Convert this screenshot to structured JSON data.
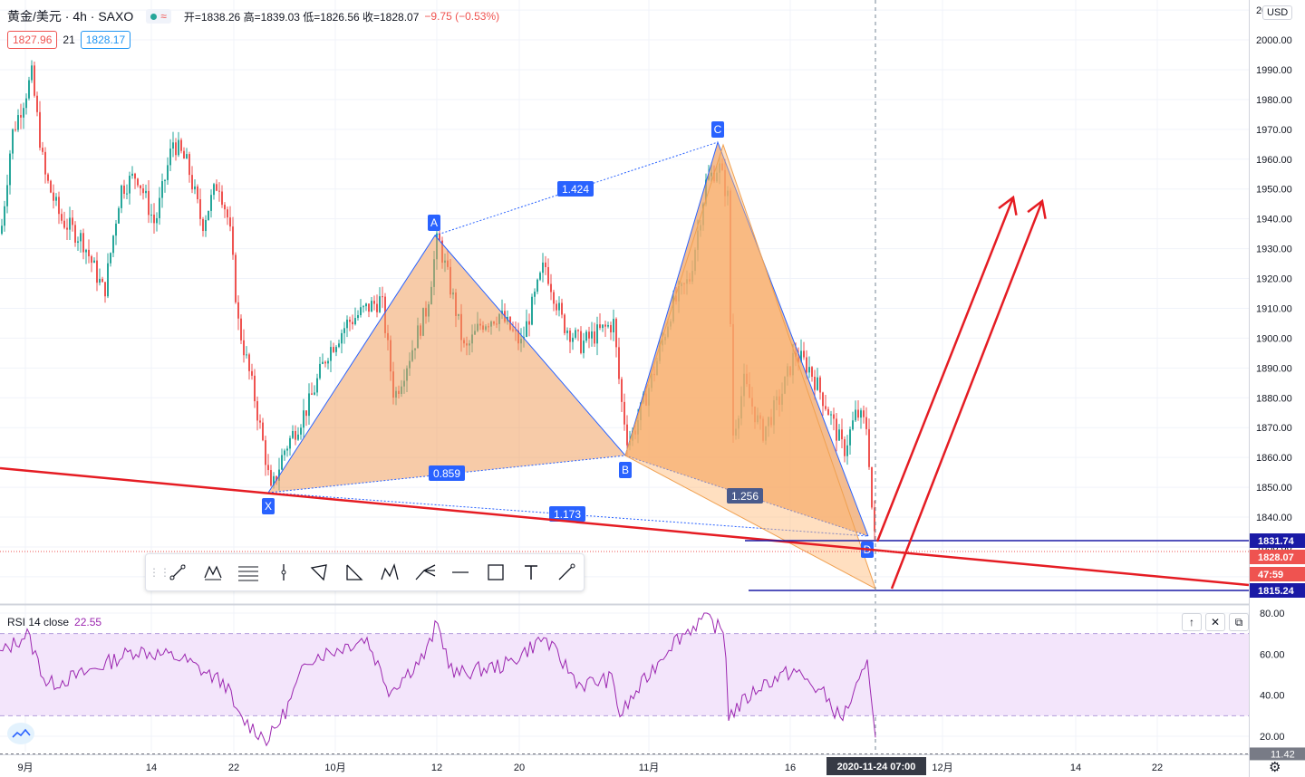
{
  "header": {
    "symbol": "黄金/美元 · 4h · SAXO",
    "ohlc": "开=1838.26  高=1839.03  低=1826.56  收=1828.07",
    "change": "−9.75 (−0.53%)",
    "bid": "1827.96",
    "spread": "21",
    "ask": "1828.17"
  },
  "currency_button": "USD",
  "price_axis": {
    "ticks": [
      "2010.00",
      "2000.00",
      "1990.00",
      "1980.00",
      "1970.00",
      "1960.00",
      "1950.00",
      "1940.00",
      "1930.00",
      "1920.00",
      "1910.00",
      "1900.00",
      "1890.00",
      "1880.00",
      "1870.00",
      "1860.00",
      "1850.00",
      "1840.00",
      "1830.00",
      "1820.00"
    ],
    "labels": {
      "upper_line": "1831.74",
      "last_price": "1828.07",
      "countdown": "47:59",
      "lower_line": "1815.24"
    }
  },
  "time_axis": {
    "ticks": [
      "9月",
      "14",
      "22",
      "10月",
      "12",
      "20",
      "11月",
      "16",
      "12月",
      "14",
      "22"
    ],
    "crosshair_label": "2020-11-24  07:00"
  },
  "pattern": {
    "points": [
      "X",
      "A",
      "B",
      "C",
      "D"
    ],
    "ratios": {
      "xb": "0.859",
      "ac": "1.424",
      "bd": "1.256",
      "xd": "1.173"
    }
  },
  "rsi": {
    "title": "RSI 14 close",
    "value": "22.55",
    "ticks": [
      "80.00",
      "60.00",
      "40.00",
      "20.00"
    ],
    "bottom_label": "11.42"
  },
  "toolbar": {
    "tools": [
      "trend-line-icon",
      "xabcd-pattern-icon",
      "fib-retracement-icon",
      "vertical-line-icon",
      "triangle-icon",
      "abcd-icon",
      "head-shoulders-icon",
      "pitchfork-icon",
      "horizontal-ray-icon",
      "rectangle-icon",
      "text-icon",
      "brush-icon"
    ]
  },
  "pane_buttons": [
    "↑",
    "✕",
    "⧉"
  ],
  "colors": {
    "up": "#26a69a",
    "down": "#ef5350",
    "pattern_fill": "#f0a060",
    "pattern_line": "#2962ff",
    "support_line": "#e51c23",
    "level_line": "#1a237e",
    "rsi_line": "#9c27b0",
    "rsi_band": "#f3e5fb"
  },
  "chart_data": {
    "type": "candlestick",
    "symbol": "黄金/美元",
    "interval": "4h",
    "ylim": [
      1810,
      2013
    ],
    "rsi_ylim": [
      11,
      83
    ],
    "last_close": 1828.07
  }
}
